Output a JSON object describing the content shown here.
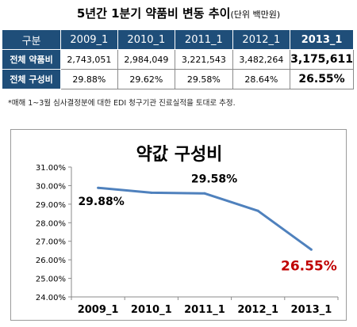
{
  "header": {
    "title": "5년간 1분기 약품비 변동 추이",
    "unit": "(단위 백만원)"
  },
  "table": {
    "corner_label": "구분",
    "columns": [
      "2009_1",
      "2010_1",
      "2011_1",
      "2012_1",
      "2013_1"
    ],
    "rows": [
      {
        "label": "전체 약품비",
        "values": [
          "2,743,051",
          "2,984,049",
          "3,221,543",
          "3,482,264",
          "3,175,611"
        ]
      },
      {
        "label": "전체 구성비",
        "values": [
          "29.88%",
          "29.62%",
          "29.58%",
          "28.64%",
          "26.55%"
        ]
      }
    ]
  },
  "footnote": "*매해 1~3월 심사결정분에 대한 EDI 청구기관 진료실적을 토대로 추정.",
  "colors": {
    "header_bg": "#1f4e79",
    "line": "#4f81bd",
    "highlight_label": "#c00000"
  },
  "chart_data": {
    "type": "line",
    "title": "약값 구성비",
    "categories": [
      "2009_1",
      "2010_1",
      "2011_1",
      "2012_1",
      "2013_1"
    ],
    "series": [
      {
        "values": [
          29.88,
          29.62,
          29.58,
          28.64,
          26.55
        ]
      }
    ],
    "data_labels": [
      {
        "index": 0,
        "text": "29.88%"
      },
      {
        "index": 2,
        "text": "29.58%"
      },
      {
        "index": 4,
        "text": "26.55%"
      }
    ],
    "ylim": [
      24.0,
      31.0
    ],
    "yticks": [
      "24.00%",
      "25.00%",
      "26.00%",
      "27.00%",
      "28.00%",
      "29.00%",
      "30.00%",
      "31.00%"
    ],
    "grid": false,
    "legend": "none"
  }
}
